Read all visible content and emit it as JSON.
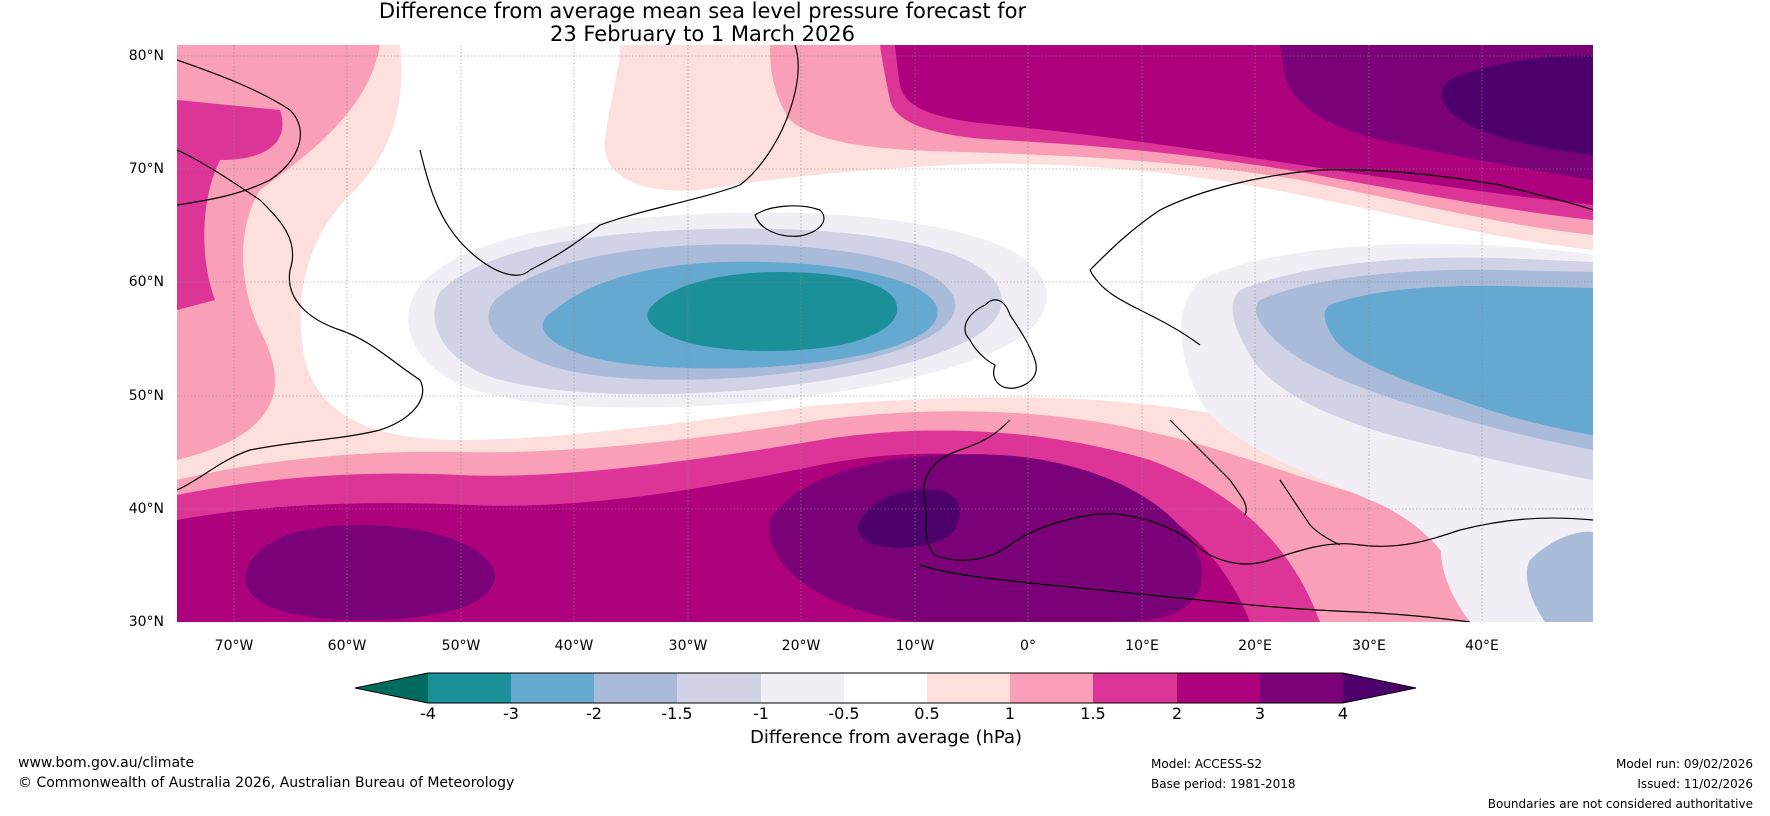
{
  "title": {
    "line1": "Difference from average mean sea level pressure forecast for",
    "line2": "23 February to 1 March 2026"
  },
  "latitude_labels": [
    "80°N",
    "70°N",
    "60°N",
    "50°N",
    "40°N",
    "30°N"
  ],
  "longitude_labels": [
    "70°W",
    "60°W",
    "50°W",
    "40°W",
    "30°W",
    "20°W",
    "10°W",
    "0°",
    "10°E",
    "20°E",
    "30°E",
    "40°E"
  ],
  "colorbar": {
    "tick_labels": [
      "-4",
      "-3",
      "-2",
      "-1.5",
      "-1",
      "-0.5",
      "0.5",
      "1",
      "1.5",
      "2",
      "3",
      "4"
    ],
    "bin_colors": [
      "#006c5e",
      "#1b9099",
      "#66a9d0",
      "#a9bbd9",
      "#d1d2e6",
      "#f2eef5",
      "#ffffff",
      "#fde0dd",
      "#f99fb8",
      "#dd3597",
      "#ad017e",
      "#7a0177",
      "#4d006b"
    ],
    "title": "Difference from average (hPa)"
  },
  "footer": {
    "website": "www.bom.gov.au/climate",
    "copyright": "© Commonwealth of Australia 2026, Australian Bureau of Meteorology",
    "model": "Model: ACCESS-S2",
    "base_period": "Base period: 1981-2018",
    "model_run": "Model run: 09/02/2026",
    "issued": "Issued: 11/02/2026",
    "disclaimer": "Boundaries are not considered authoritative"
  }
}
